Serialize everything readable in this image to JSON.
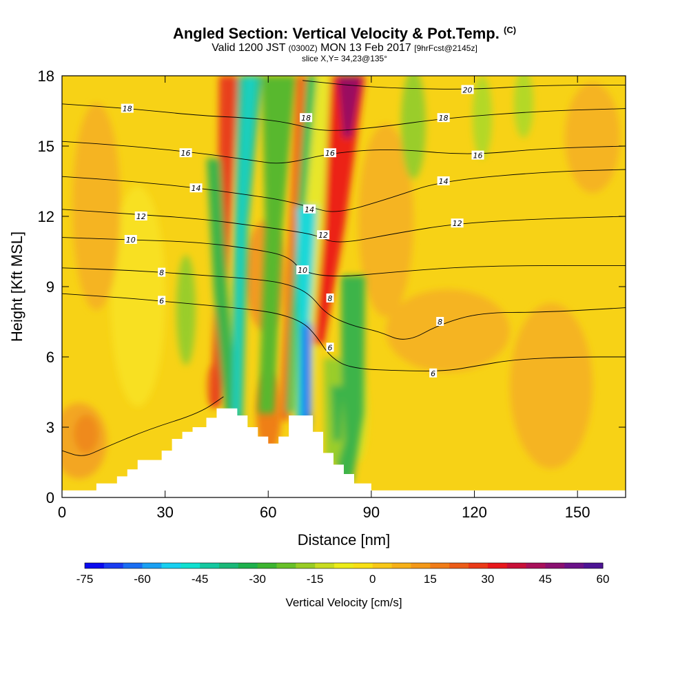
{
  "header": {
    "title": "Angled Section: Vertical Velocity & Pot.Temp.",
    "title_unit": "(C)",
    "subtitle_a": "Valid 1200 JST",
    "subtitle_utc": "(0300Z)",
    "subtitle_b": "MON 13 Feb 2017",
    "subtitle_fcst": "[9hrFcst@2145z]",
    "slice": "slice X,Y= 34,23@135°"
  },
  "chart_data": {
    "type": "heatmap",
    "xlabel": "Distance [nm]",
    "ylabel": "Height [Kft MSL]",
    "xlim": [
      0,
      164
    ],
    "ylim": [
      0,
      18
    ],
    "xticks": [
      0,
      30,
      60,
      90,
      120,
      150
    ],
    "yticks": [
      0,
      3,
      6,
      9,
      12,
      15,
      18
    ],
    "grid": false,
    "colorbar": {
      "label": "Vertical Velocity [cm/s]",
      "range": [
        -75,
        60
      ],
      "step": 5,
      "ticks": [
        -75,
        -60,
        -45,
        -30,
        -15,
        0,
        15,
        30,
        45,
        60
      ]
    },
    "terrain": [
      [
        0,
        0.3
      ],
      [
        10,
        0.6
      ],
      [
        16,
        0.9
      ],
      [
        19,
        1.2
      ],
      [
        22,
        1.6
      ],
      [
        29,
        2.0
      ],
      [
        32,
        2.5
      ],
      [
        35,
        2.8
      ],
      [
        38,
        3.0
      ],
      [
        42,
        3.4
      ],
      [
        45,
        3.8
      ],
      [
        48,
        3.8
      ],
      [
        51,
        3.5
      ],
      [
        54,
        3.0
      ],
      [
        57,
        2.6
      ],
      [
        60,
        2.3
      ],
      [
        63,
        2.6
      ],
      [
        66,
        3.5
      ],
      [
        70,
        3.5
      ],
      [
        73,
        2.8
      ],
      [
        76,
        1.9
      ],
      [
        79,
        1.4
      ],
      [
        82,
        1.0
      ],
      [
        85,
        0.6
      ],
      [
        90,
        0.3
      ],
      [
        164,
        0.3
      ]
    ],
    "theta_contours": [
      {
        "value": 4,
        "labeled": false,
        "points": [
          [
            0,
            2.0
          ],
          [
            6,
            1.7
          ],
          [
            12,
            2.1
          ],
          [
            25,
            2.9
          ],
          [
            40,
            3.6
          ],
          [
            47,
            4.3
          ]
        ]
      },
      {
        "value": 6,
        "labeled": true,
        "label_at": [
          29,
          8.4
        ],
        "points": [
          [
            0,
            8.7
          ],
          [
            20,
            8.5
          ],
          [
            35,
            8.3
          ],
          [
            50,
            8.1
          ],
          [
            62,
            7.9
          ],
          [
            70,
            7.5
          ],
          [
            74,
            6.9
          ],
          [
            78,
            6.0
          ],
          [
            84,
            5.5
          ],
          [
            100,
            5.4
          ],
          [
            112,
            5.4
          ],
          [
            120,
            5.6
          ],
          [
            132,
            5.9
          ],
          [
            150,
            6.0
          ],
          [
            164,
            6.0
          ]
        ]
      },
      {
        "value": 8,
        "labeled": true,
        "label_at": [
          29,
          9.6
        ],
        "points": [
          [
            0,
            9.8
          ],
          [
            20,
            9.7
          ],
          [
            40,
            9.5
          ],
          [
            58,
            9.3
          ],
          [
            66,
            9.1
          ],
          [
            72,
            8.7
          ],
          [
            77,
            7.8
          ],
          [
            85,
            7.3
          ],
          [
            92,
            7.1
          ],
          [
            100,
            6.6
          ],
          [
            110,
            7.4
          ],
          [
            122,
            7.9
          ],
          [
            140,
            7.9
          ],
          [
            164,
            8.1
          ]
        ]
      },
      {
        "value": 10,
        "labeled": true,
        "label_at": [
          20,
          11.0
        ],
        "points": [
          [
            0,
            11.1
          ],
          [
            20,
            11.0
          ],
          [
            40,
            10.9
          ],
          [
            56,
            10.6
          ],
          [
            66,
            10.3
          ],
          [
            70,
            9.6
          ],
          [
            80,
            9.4
          ],
          [
            95,
            9.6
          ],
          [
            112,
            9.8
          ],
          [
            130,
            9.9
          ],
          [
            164,
            9.9
          ]
        ]
      },
      {
        "value": 12,
        "labeled": true,
        "label_at": [
          23,
          12.0
        ],
        "points": [
          [
            0,
            12.3
          ],
          [
            20,
            12.1
          ],
          [
            40,
            11.9
          ],
          [
            56,
            11.6
          ],
          [
            66,
            11.4
          ],
          [
            74,
            11.2
          ],
          [
            80,
            10.8
          ],
          [
            98,
            11.3
          ],
          [
            115,
            11.7
          ],
          [
            140,
            11.9
          ],
          [
            164,
            12.0
          ]
        ]
      },
      {
        "value": 14,
        "labeled": true,
        "label_at": [
          39,
          13.2
        ],
        "points": [
          [
            0,
            13.7
          ],
          [
            20,
            13.5
          ],
          [
            40,
            13.2
          ],
          [
            55,
            12.9
          ],
          [
            64,
            12.7
          ],
          [
            72,
            12.4
          ],
          [
            80,
            12.1
          ],
          [
            96,
            12.8
          ],
          [
            110,
            13.5
          ],
          [
            140,
            13.9
          ],
          [
            164,
            14.0
          ]
        ]
      },
      {
        "value": 16,
        "labeled": true,
        "label_at": [
          36,
          14.7
        ],
        "points": [
          [
            0,
            15.2
          ],
          [
            20,
            15.0
          ],
          [
            40,
            14.7
          ],
          [
            55,
            14.4
          ],
          [
            64,
            14.2
          ],
          [
            78,
            14.7
          ],
          [
            96,
            14.9
          ],
          [
            118,
            14.6
          ],
          [
            140,
            14.9
          ],
          [
            164,
            15.0
          ]
        ]
      },
      {
        "value": 18,
        "labeled": true,
        "label_at": [
          19,
          16.6
        ],
        "points": [
          [
            0,
            16.8
          ],
          [
            20,
            16.6
          ],
          [
            40,
            16.3
          ],
          [
            55,
            16.2
          ],
          [
            66,
            16.0
          ],
          [
            76,
            15.6
          ],
          [
            92,
            15.8
          ],
          [
            112,
            16.2
          ],
          [
            140,
            16.5
          ],
          [
            164,
            16.6
          ]
        ]
      },
      {
        "value": 20,
        "labeled": true,
        "label_at": [
          118,
          17.4
        ],
        "points": [
          [
            70,
            17.8
          ],
          [
            90,
            17.5
          ],
          [
            118,
            17.4
          ],
          [
            140,
            17.6
          ],
          [
            164,
            17.6
          ]
        ]
      }
    ],
    "extra_labels": [
      {
        "text": "18",
        "at": [
          71,
          16.2
        ]
      },
      {
        "text": "16",
        "at": [
          78,
          14.7
        ]
      },
      {
        "text": "14",
        "at": [
          72,
          12.3
        ]
      },
      {
        "text": "12",
        "at": [
          76,
          11.2
        ]
      },
      {
        "text": "10",
        "at": [
          70,
          9.7
        ]
      },
      {
        "text": "8",
        "at": [
          78,
          8.5
        ]
      },
      {
        "text": "6",
        "at": [
          78,
          6.4
        ]
      },
      {
        "text": "18",
        "at": [
          111,
          16.2
        ]
      },
      {
        "text": "16",
        "at": [
          121,
          14.6
        ]
      },
      {
        "text": "14",
        "at": [
          111,
          13.5
        ]
      },
      {
        "text": "12",
        "at": [
          115,
          11.7
        ]
      },
      {
        "text": "8",
        "at": [
          110,
          7.5
        ]
      },
      {
        "text": "6",
        "at": [
          108,
          5.3
        ]
      }
    ]
  }
}
